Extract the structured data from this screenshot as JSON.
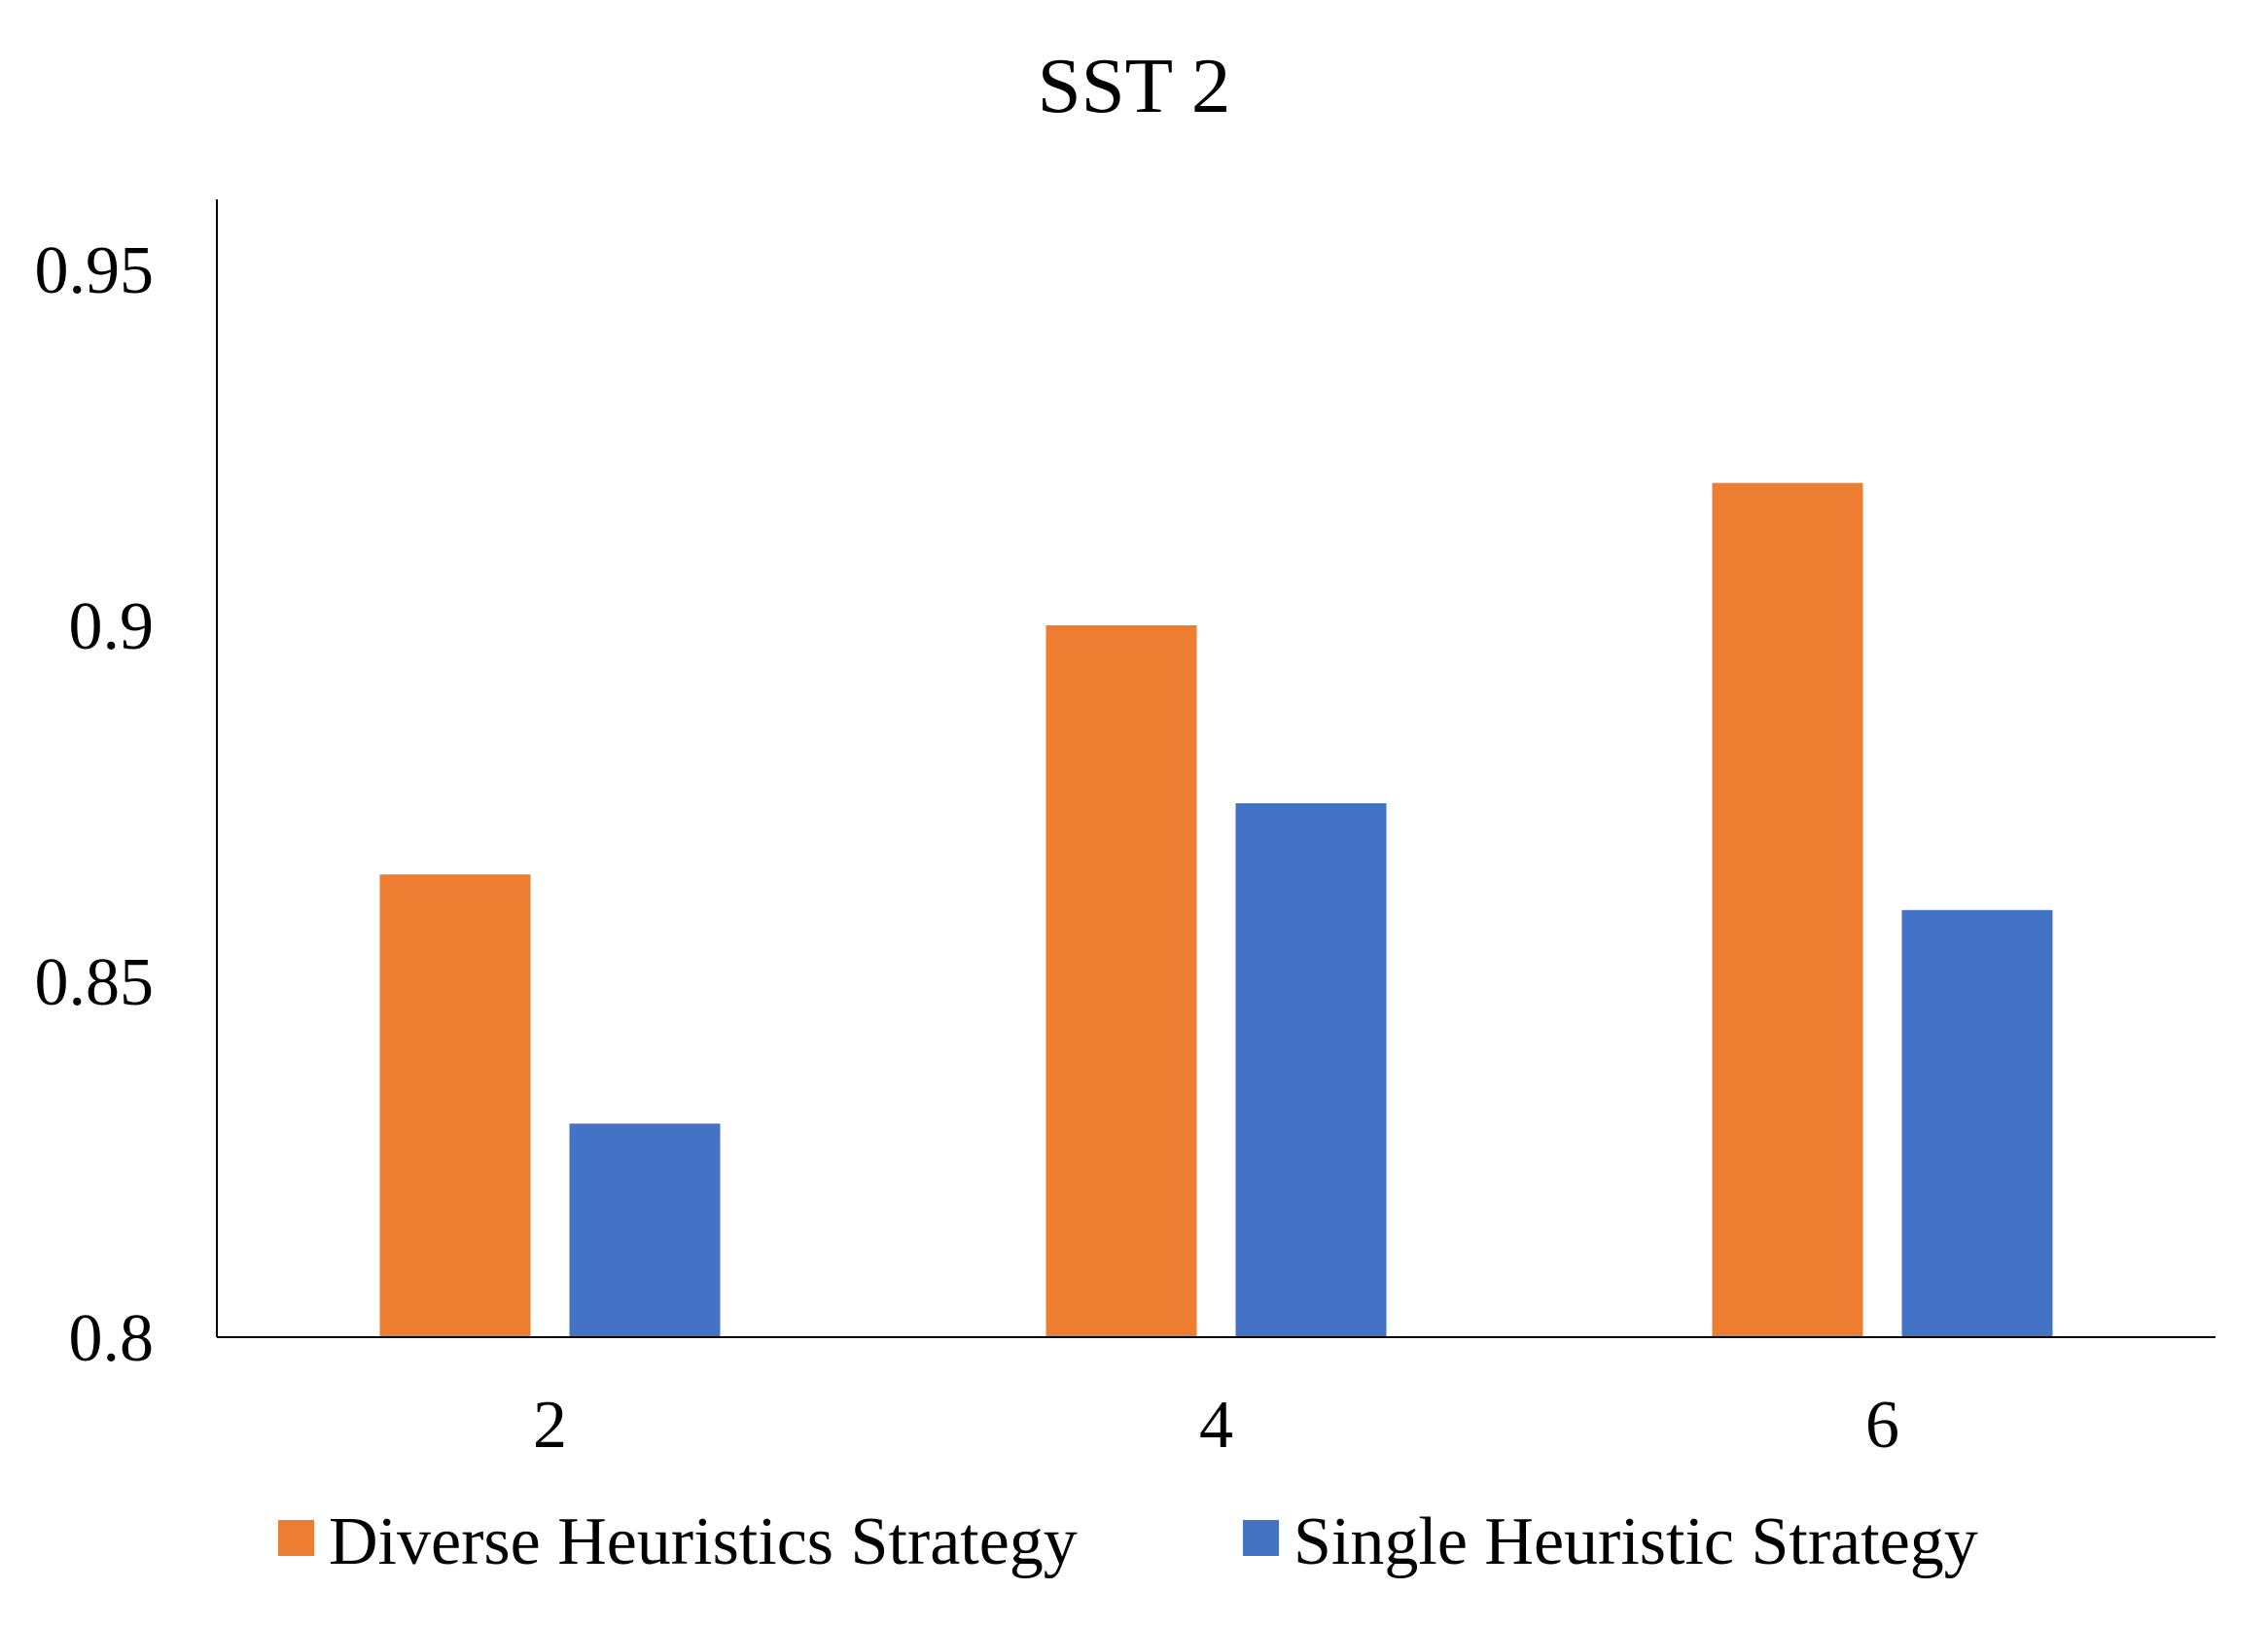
{
  "chart_data": {
    "type": "bar",
    "title": "SST 2",
    "xlabel": "",
    "ylabel": "",
    "categories": [
      "2",
      "4",
      "6"
    ],
    "series": [
      {
        "name": "Diverse Heuristics Strategy",
        "color": "#ED7D31",
        "values": [
          0.865,
          0.9,
          0.92
        ]
      },
      {
        "name": "Single Heuristic Strategy",
        "color": "#4472C4",
        "values": [
          0.83,
          0.875,
          0.86
        ]
      }
    ],
    "ylim": [
      0.8,
      0.96
    ],
    "yticks": [
      "0.8",
      "0.85",
      "0.9",
      "0.95"
    ],
    "grid": false,
    "legend_position": "bottom"
  }
}
